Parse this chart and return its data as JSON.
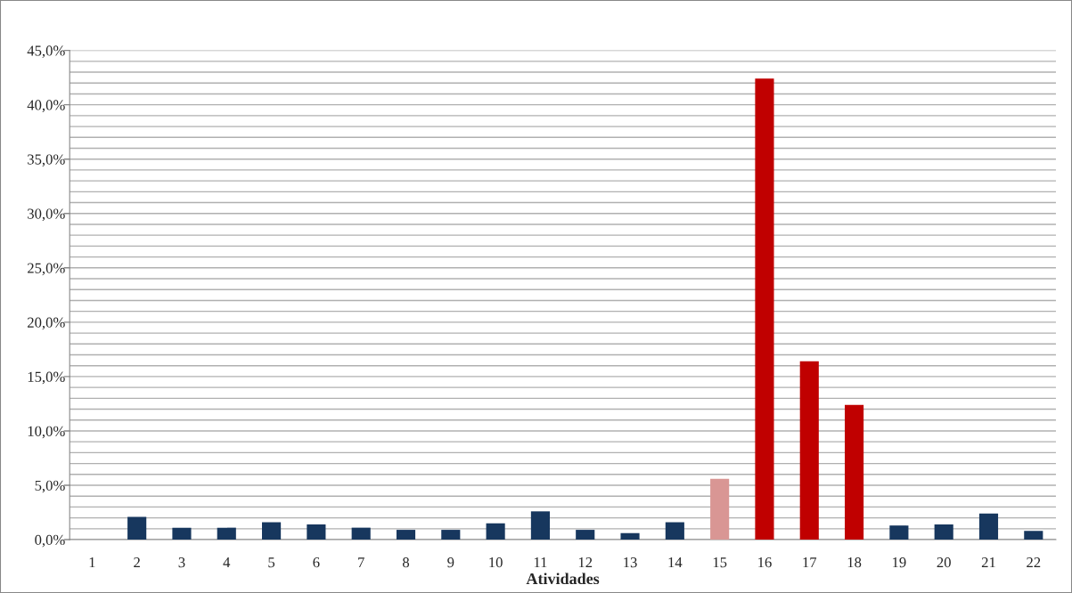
{
  "chart_data": {
    "type": "bar",
    "xlabel": "Atividades",
    "categories": [
      "1",
      "2",
      "3",
      "4",
      "5",
      "6",
      "7",
      "8",
      "9",
      "10",
      "11",
      "12",
      "13",
      "14",
      "15",
      "16",
      "17",
      "18",
      "19",
      "20",
      "21",
      "22"
    ],
    "values": [
      0,
      2.1,
      1.1,
      1.1,
      1.6,
      1.4,
      1.1,
      0.9,
      0.9,
      1.5,
      2.6,
      0.9,
      0.6,
      1.6,
      5.6,
      42.4,
      16.4,
      12.4,
      1.3,
      1.4,
      2.4,
      0.8
    ],
    "colors": [
      "#17375e",
      "#17375e",
      "#17375e",
      "#17375e",
      "#17375e",
      "#17375e",
      "#17375e",
      "#17375e",
      "#17375e",
      "#17375e",
      "#17375e",
      "#17375e",
      "#17375e",
      "#17375e",
      "#d99694",
      "#c00000",
      "#c00000",
      "#c00000",
      "#17375e",
      "#17375e",
      "#17375e",
      "#17375e"
    ],
    "ylim": [
      0,
      45
    ],
    "yticks": [
      {
        "value": 0,
        "label": "0,0%"
      },
      {
        "value": 1,
        "label": null
      },
      {
        "value": 2,
        "label": null
      },
      {
        "value": 3,
        "label": null
      },
      {
        "value": 4,
        "label": null
      },
      {
        "value": 5,
        "label": "5,0%"
      },
      {
        "value": 6,
        "label": null
      },
      {
        "value": 7,
        "label": null
      },
      {
        "value": 8,
        "label": null
      },
      {
        "value": 9,
        "label": null
      },
      {
        "value": 10,
        "label": "10,0%"
      },
      {
        "value": 11,
        "label": null
      },
      {
        "value": 12,
        "label": null
      },
      {
        "value": 13,
        "label": null
      },
      {
        "value": 14,
        "label": null
      },
      {
        "value": 15,
        "label": "15,0%"
      },
      {
        "value": 16,
        "label": null
      },
      {
        "value": 17,
        "label": null
      },
      {
        "value": 18,
        "label": null
      },
      {
        "value": 19,
        "label": null
      },
      {
        "value": 20,
        "label": "20,0%"
      },
      {
        "value": 21,
        "label": null
      },
      {
        "value": 22,
        "label": null
      },
      {
        "value": 23,
        "label": null
      },
      {
        "value": 24,
        "label": null
      },
      {
        "value": 25,
        "label": "25,0%"
      },
      {
        "value": 26,
        "label": null
      },
      {
        "value": 27,
        "label": null
      },
      {
        "value": 28,
        "label": null
      },
      {
        "value": 29,
        "label": null
      },
      {
        "value": 30,
        "label": "30,0%"
      },
      {
        "value": 31,
        "label": null
      },
      {
        "value": 32,
        "label": null
      },
      {
        "value": 33,
        "label": null
      },
      {
        "value": 34,
        "label": null
      },
      {
        "value": 35,
        "label": "35,0%"
      },
      {
        "value": 36,
        "label": null
      },
      {
        "value": 37,
        "label": null
      },
      {
        "value": 38,
        "label": null
      },
      {
        "value": 39,
        "label": null
      },
      {
        "value": 40,
        "label": "40,0%"
      },
      {
        "value": 41,
        "label": null
      },
      {
        "value": 42,
        "label": null
      },
      {
        "value": 43,
        "label": null
      },
      {
        "value": 44,
        "label": null
      },
      {
        "value": 45,
        "label": "45,0%"
      }
    ],
    "grid": "y",
    "legend": false
  }
}
